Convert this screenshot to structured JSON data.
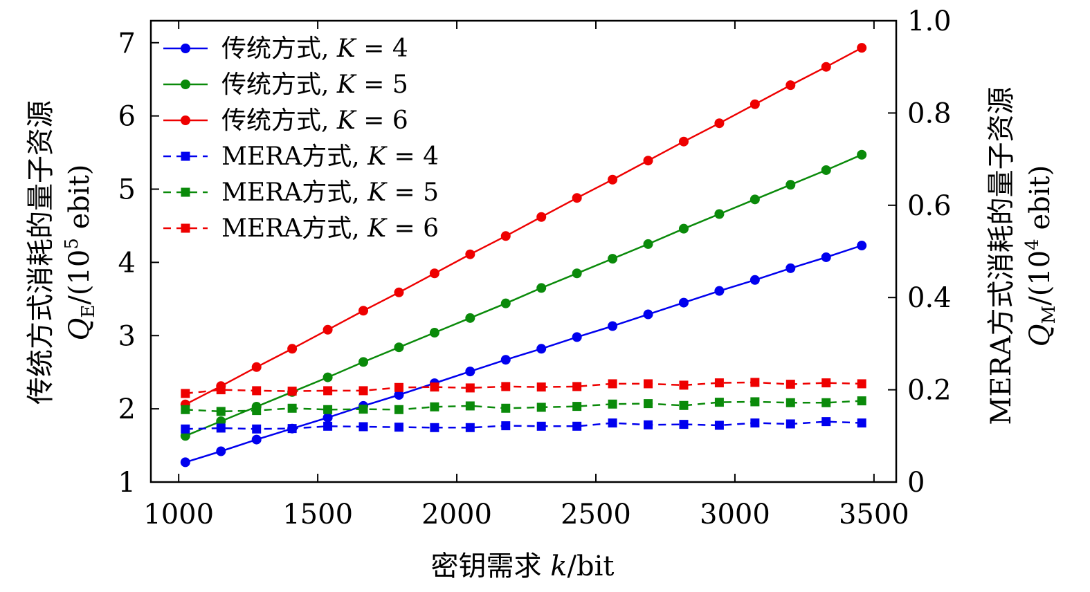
{
  "chart_data": {
    "type": "line",
    "xlabel": "密钥需求 k/bit",
    "ylabel_left": "传统方式消耗的量子资源 Q_E/(10^5 ebit)",
    "ylabel_left_line1": "传统方式消耗的量子资源",
    "ylabel_left_line2": "Q",
    "ylabel_left_line2_sub": "E",
    "ylabel_left_line2_rest": "/(10",
    "ylabel_left_line2_sup": "5",
    "ylabel_left_line2_end": " ebit)",
    "ylabel_right": "MERA方式消耗的量子资源 Q_M/(10^4 ebit)",
    "ylabel_right_line1": "MERA方式消耗的量子资源",
    "ylabel_right_line2": "Q",
    "ylabel_right_line2_sub": "M",
    "ylabel_right_line2_rest": "/(10",
    "ylabel_right_line2_sup": "4",
    "ylabel_right_line2_end": " ebit)",
    "xlim": [
      900,
      3580
    ],
    "ylim_left": [
      1,
      7.3
    ],
    "ylim_right": [
      0,
      1.0
    ],
    "x_ticks": [
      1000,
      1500,
      2000,
      2500,
      3000,
      3500
    ],
    "x_tick_labels": [
      "1000",
      "1500",
      "2000",
      "2500",
      "3000",
      "3500"
    ],
    "y_left_ticks": [
      1,
      2,
      3,
      4,
      5,
      6,
      7
    ],
    "y_left_tick_labels": [
      "1",
      "2",
      "3",
      "4",
      "5",
      "6",
      "7"
    ],
    "y_right_ticks": [
      0,
      0.2,
      0.4,
      0.6,
      0.8,
      1.0
    ],
    "y_right_tick_labels": [
      "0",
      "0.2",
      "0.4",
      "0.6",
      "0.8",
      "1.0"
    ],
    "grid": false,
    "legend_position": "top-left",
    "x": [
      1024,
      1152,
      1280,
      1408,
      1536,
      1664,
      1792,
      1920,
      2048,
      2176,
      2304,
      2432,
      2560,
      2688,
      2816,
      2944,
      3072,
      3200,
      3328,
      3456
    ],
    "series": [
      {
        "name": "传统方式, K = 4",
        "legend_prefix": "传统方式, ",
        "legend_var": "K",
        "legend_value": " = 4",
        "axis": "left",
        "style": "solid",
        "marker": "circle",
        "color": "#0000ee",
        "values": [
          1.27,
          1.42,
          1.58,
          1.73,
          1.88,
          2.04,
          2.19,
          2.35,
          2.51,
          2.67,
          2.82,
          2.98,
          3.13,
          3.29,
          3.45,
          3.61,
          3.76,
          3.92,
          4.07,
          4.23
        ]
      },
      {
        "name": "传统方式, K = 5",
        "legend_prefix": "传统方式, ",
        "legend_var": "K",
        "legend_value": " = 5",
        "axis": "left",
        "style": "solid",
        "marker": "circle",
        "color": "#0a8a0a",
        "values": [
          1.63,
          1.83,
          2.03,
          2.23,
          2.43,
          2.64,
          2.84,
          3.04,
          3.24,
          3.44,
          3.65,
          3.85,
          4.05,
          4.25,
          4.46,
          4.66,
          4.86,
          5.06,
          5.26,
          5.47
        ]
      },
      {
        "name": "传统方式, K = 6",
        "legend_prefix": "传统方式, ",
        "legend_var": "K",
        "legend_value": " = 6",
        "axis": "left",
        "style": "solid",
        "marker": "circle",
        "color": "#ee0000",
        "values": [
          2.06,
          2.31,
          2.57,
          2.82,
          3.08,
          3.34,
          3.59,
          3.85,
          4.11,
          4.36,
          4.62,
          4.88,
          5.13,
          5.39,
          5.65,
          5.9,
          6.16,
          6.42,
          6.67,
          6.93
        ]
      },
      {
        "name": "MERA方式, K = 4",
        "legend_prefix": "MERA方式, ",
        "legend_var": "K",
        "legend_value": " = 4",
        "axis": "right",
        "style": "dashed",
        "marker": "square",
        "color": "#0000ee",
        "values": [
          0.115,
          0.117,
          0.115,
          0.116,
          0.121,
          0.12,
          0.119,
          0.118,
          0.118,
          0.122,
          0.121,
          0.121,
          0.128,
          0.124,
          0.125,
          0.123,
          0.128,
          0.126,
          0.131,
          0.128
        ]
      },
      {
        "name": "MERA方式, K = 5",
        "legend_prefix": "MERA方式, ",
        "legend_var": "K",
        "legend_value": " = 5",
        "axis": "right",
        "style": "dashed",
        "marker": "square",
        "color": "#0a8a0a",
        "values": [
          0.157,
          0.153,
          0.155,
          0.16,
          0.157,
          0.158,
          0.157,
          0.163,
          0.165,
          0.16,
          0.162,
          0.164,
          0.169,
          0.17,
          0.166,
          0.173,
          0.174,
          0.172,
          0.172,
          0.176
        ]
      },
      {
        "name": "MERA方式, K = 6",
        "legend_prefix": "MERA方式, ",
        "legend_var": "K",
        "legend_value": " = 6",
        "axis": "right",
        "style": "dashed",
        "marker": "square",
        "color": "#ee0000",
        "values": [
          0.192,
          0.2,
          0.198,
          0.197,
          0.198,
          0.198,
          0.205,
          0.206,
          0.204,
          0.207,
          0.206,
          0.207,
          0.213,
          0.213,
          0.21,
          0.215,
          0.216,
          0.212,
          0.215,
          0.213
        ]
      }
    ]
  }
}
